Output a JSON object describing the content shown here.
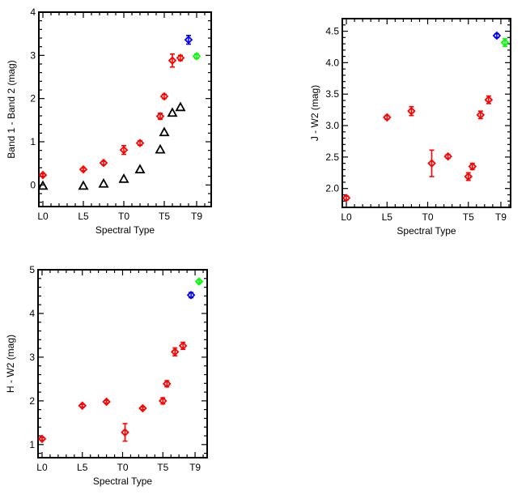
{
  "colors": {
    "red": "#ff0000",
    "blue": "#0000ff",
    "green": "#00ff00",
    "black": "#000000"
  },
  "chart_data": [
    {
      "id": "band1-band2",
      "type": "scatter",
      "title": "",
      "xlabel": "Spectral Type",
      "ylabel": "Band 1 - Band 2 (mag)",
      "xlim": [
        -0.5,
        20.8
      ],
      "ylim": [
        -0.5,
        4.0
      ],
      "xticks": [
        {
          "v": 0,
          "label": "L0"
        },
        {
          "v": 5,
          "label": "L5"
        },
        {
          "v": 10,
          "label": "T0"
        },
        {
          "v": 15,
          "label": "T5"
        },
        {
          "v": 19,
          "label": "T9"
        }
      ],
      "yticks": [
        {
          "v": 0,
          "label": "0"
        },
        {
          "v": 1,
          "label": "1"
        },
        {
          "v": 2,
          "label": "2"
        },
        {
          "v": 3,
          "label": "3"
        },
        {
          "v": 4,
          "label": "4"
        }
      ],
      "yminor": 0.2,
      "series": [
        {
          "name": "red",
          "color": "red",
          "marker": "diamond",
          "points": [
            [
              0,
              0.23,
              0.03
            ],
            [
              5,
              0.36,
              0.03
            ],
            [
              7.5,
              0.51,
              0.04
            ],
            [
              10,
              0.81,
              0.1
            ],
            [
              12,
              0.97,
              0.05
            ],
            [
              14.5,
              1.59,
              0.07
            ],
            [
              15,
              2.05,
              0.05
            ],
            [
              16,
              2.88,
              0.15
            ],
            [
              17,
              2.94,
              0.06
            ]
          ]
        },
        {
          "name": "black-triangles",
          "color": "black",
          "marker": "triangle",
          "points": [
            [
              0,
              -0.02,
              0
            ],
            [
              5,
              -0.02,
              0
            ],
            [
              7.5,
              0.03,
              0
            ],
            [
              10,
              0.14,
              0
            ],
            [
              12,
              0.36,
              0
            ],
            [
              14.5,
              0.82,
              0
            ],
            [
              15,
              1.22,
              0
            ],
            [
              16,
              1.67,
              0
            ],
            [
              17,
              1.8,
              0
            ]
          ]
        },
        {
          "name": "blue",
          "color": "blue",
          "marker": "diamond",
          "points": [
            [
              18,
              3.36,
              0.1
            ]
          ]
        },
        {
          "name": "green",
          "color": "green",
          "marker": "diamond",
          "points": [
            [
              19,
              2.98,
              0.05
            ]
          ]
        }
      ]
    },
    {
      "id": "j-w2",
      "type": "scatter",
      "title": "",
      "xlabel": "Spectral Type",
      "ylabel": "J - W2 (mag)",
      "xlim": [
        -0.5,
        20.2
      ],
      "ylim": [
        1.7,
        4.7
      ],
      "xticks": [
        {
          "v": 0,
          "label": "L0"
        },
        {
          "v": 5,
          "label": "L5"
        },
        {
          "v": 10,
          "label": "T0"
        },
        {
          "v": 15,
          "label": "T5"
        },
        {
          "v": 19,
          "label": "T9"
        }
      ],
      "yticks": [
        {
          "v": 2.0,
          "label": "2.0"
        },
        {
          "v": 2.5,
          "label": "2.5"
        },
        {
          "v": 3.0,
          "label": "3.0"
        },
        {
          "v": 3.5,
          "label": "3.5"
        },
        {
          "v": 4.0,
          "label": "4.0"
        },
        {
          "v": 4.5,
          "label": "4.5"
        }
      ],
      "yminor": 0.1,
      "series": [
        {
          "name": "red",
          "color": "red",
          "marker": "diamond",
          "points": [
            [
              0,
              1.85,
              0.03
            ],
            [
              5,
              3.13,
              0.03
            ],
            [
              8,
              3.23,
              0.07
            ],
            [
              10.5,
              2.4,
              0.21
            ],
            [
              12.5,
              2.51,
              0.03
            ],
            [
              15,
              2.19,
              0.06
            ],
            [
              15.5,
              2.35,
              0.05
            ],
            [
              16.5,
              3.17,
              0.06
            ],
            [
              17.5,
              3.41,
              0.06
            ]
          ]
        },
        {
          "name": "blue",
          "color": "blue",
          "marker": "diamond",
          "points": [
            [
              18.5,
              4.43,
              0.03
            ]
          ]
        },
        {
          "name": "green",
          "color": "green",
          "marker": "diamond",
          "points": [
            [
              19.5,
              4.32,
              0.06
            ]
          ]
        }
      ]
    },
    {
      "id": "h-w2",
      "type": "scatter",
      "title": "",
      "xlabel": "Spectral Type",
      "ylabel": "H - W2 (mag)",
      "xlim": [
        -0.5,
        20.5
      ],
      "ylim": [
        0.7,
        5.0
      ],
      "xticks": [
        {
          "v": 0,
          "label": "L0"
        },
        {
          "v": 5,
          "label": "L5"
        },
        {
          "v": 10,
          "label": "T0"
        },
        {
          "v": 15,
          "label": "T5"
        },
        {
          "v": 19,
          "label": "T9"
        }
      ],
      "yticks": [
        {
          "v": 1,
          "label": "1"
        },
        {
          "v": 2,
          "label": "2"
        },
        {
          "v": 3,
          "label": "3"
        },
        {
          "v": 4,
          "label": "4"
        },
        {
          "v": 5,
          "label": "5"
        }
      ],
      "yminor": 0.2,
      "series": [
        {
          "name": "red",
          "color": "red",
          "marker": "diamond",
          "points": [
            [
              0,
              1.13,
              0.03
            ],
            [
              5,
              1.89,
              0.03
            ],
            [
              8,
              1.98,
              0.03
            ],
            [
              10.3,
              1.28,
              0.2
            ],
            [
              12.5,
              1.83,
              0.03
            ],
            [
              15,
              2.0,
              0.07
            ],
            [
              15.5,
              2.39,
              0.07
            ],
            [
              16.5,
              3.12,
              0.09
            ],
            [
              17.5,
              3.26,
              0.08
            ]
          ]
        },
        {
          "name": "blue",
          "color": "blue",
          "marker": "diamond",
          "points": [
            [
              18.5,
              4.42,
              0.06
            ]
          ]
        },
        {
          "name": "green",
          "color": "green",
          "marker": "diamond",
          "points": [
            [
              19.5,
              4.73,
              0.03
            ]
          ]
        }
      ]
    }
  ]
}
